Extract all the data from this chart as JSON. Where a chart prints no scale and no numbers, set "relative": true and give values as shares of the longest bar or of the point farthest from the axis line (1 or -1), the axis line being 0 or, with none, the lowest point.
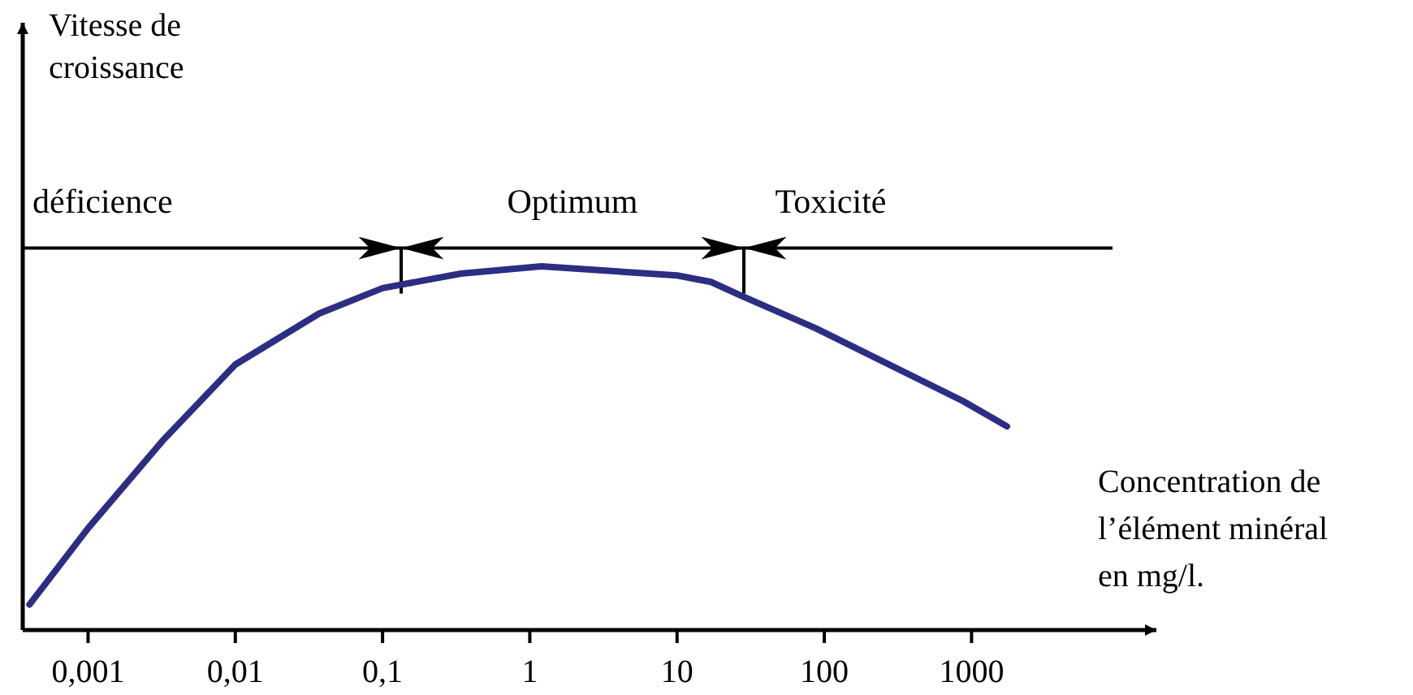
{
  "chart_data": {
    "type": "line",
    "relative": true,
    "log": "x",
    "xlabel": "Concentration de\nl’élément minéral\nen mg/l.",
    "xlim": [
      0.00036,
      18000
    ],
    "xticks": [
      {
        "value": 0.001,
        "label": "0,001"
      },
      {
        "value": 0.01,
        "label": "0,01"
      },
      {
        "value": 0.1,
        "label": "0,1"
      },
      1,
      10,
      100,
      1000
    ],
    "x": [
      0.0004,
      0.001,
      0.0032,
      0.01,
      0.037,
      0.1,
      0.34,
      1.2,
      10,
      17,
      27,
      87,
      870,
      1740
    ],
    "series": [
      {
        "color": "#2b2e83",
        "values": [
          0.07,
          0.28,
          0.52,
          0.73,
          0.87,
          0.94,
          0.98,
          1.0,
          0.975,
          0.957,
          0.92,
          0.83,
          0.63,
          0.56
        ]
      }
    ],
    "annotations": [
      "Vitesse de\ncroissance",
      "déficience",
      "Optimum",
      "Toxicité"
    ],
    "marker": "none",
    "line_style": "solid"
  }
}
